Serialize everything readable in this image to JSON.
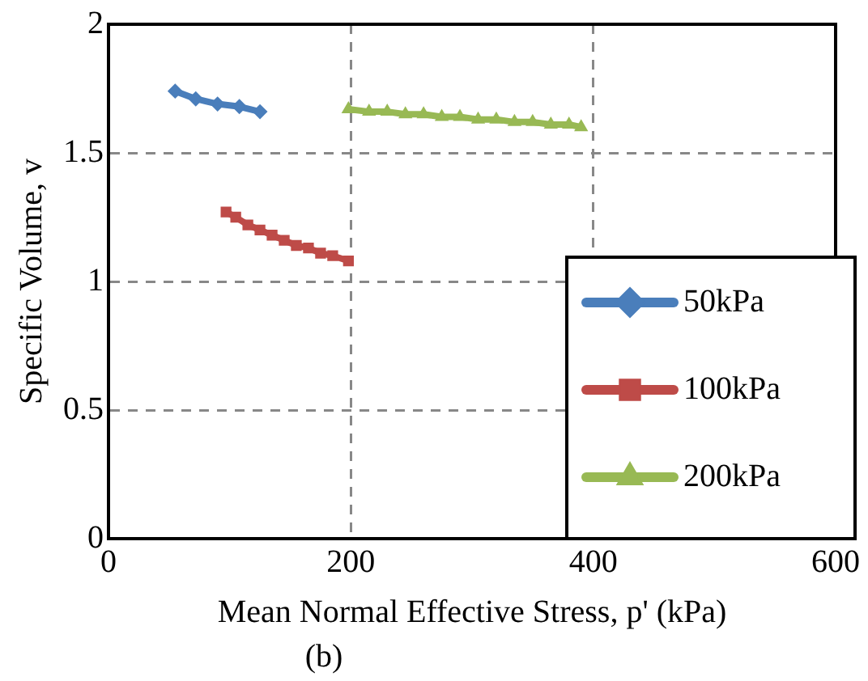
{
  "chart_data": {
    "type": "line",
    "xlabel": "Mean Normal Effective Stress, p' (kPa)",
    "ylabel": "Specific Volume, v",
    "annotations": [
      "(b)"
    ],
    "xlim": [
      0,
      600
    ],
    "xticks": [
      0,
      200,
      400,
      600
    ],
    "ylim": [
      0,
      2
    ],
    "yticks": [
      0,
      0.5,
      1,
      1.5,
      2
    ],
    "grid": true,
    "legend": "bottom right",
    "series": [
      {
        "name": "50kPa",
        "color": "#4a7ebb",
        "marker": "diamond",
        "x": [
          55,
          72,
          90,
          108,
          125
        ],
        "values": [
          1.74,
          1.71,
          1.69,
          1.68,
          1.66
        ]
      },
      {
        "name": "100kPa",
        "color": "#be4b48",
        "marker": "square",
        "x": [
          97,
          105,
          115,
          125,
          135,
          145,
          155,
          165,
          175,
          185,
          198
        ],
        "values": [
          1.27,
          1.25,
          1.22,
          1.2,
          1.18,
          1.16,
          1.14,
          1.13,
          1.11,
          1.1,
          1.08
        ]
      },
      {
        "name": "200kPa",
        "color": "#98b954",
        "marker": "triangle",
        "x": [
          198,
          215,
          230,
          245,
          260,
          275,
          290,
          305,
          320,
          335,
          350,
          365,
          380,
          390
        ],
        "values": [
          1.67,
          1.66,
          1.66,
          1.65,
          1.65,
          1.64,
          1.64,
          1.63,
          1.63,
          1.62,
          1.62,
          1.61,
          1.61,
          1.6
        ]
      }
    ]
  }
}
